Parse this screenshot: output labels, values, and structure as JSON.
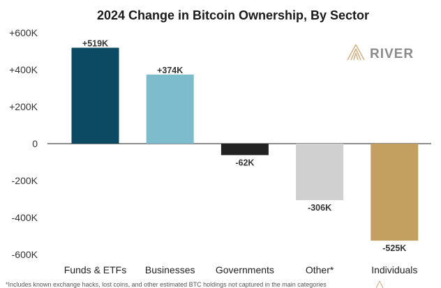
{
  "chart_data": {
    "type": "bar",
    "title": "2024 Change in Bitcoin Ownership, By Sector",
    "categories": [
      "Funds & ETFs",
      "Businesses",
      "Governments",
      "Other*",
      "Individuals"
    ],
    "values": [
      519,
      374,
      -62,
      -306,
      -525
    ],
    "unit": "K",
    "data_labels": [
      "+519K",
      "+374K",
      "-62K",
      "-306K",
      "-525K"
    ],
    "colors": [
      "#0b4a62",
      "#7dbccd",
      "#222222",
      "#d0d0d0",
      "#c4a060"
    ],
    "ylim": [
      -600,
      600
    ],
    "yticks": [
      600,
      400,
      200,
      0,
      -200,
      -400,
      -600
    ],
    "ytick_labels": [
      "+600K",
      "+400K",
      "+200K",
      "0",
      "-200K",
      "-400K",
      "-600K"
    ],
    "xlabel": "",
    "ylabel": "",
    "grid": false,
    "zero_line": true
  },
  "brand": {
    "logo_text": "RIVER",
    "logo_color": "#d4b48a"
  },
  "footnote": "*Includes known exchange hacks, lost coins, and other estimated BTC holdings not captured in the main categories",
  "footnote_icon": "river-mark-icon"
}
